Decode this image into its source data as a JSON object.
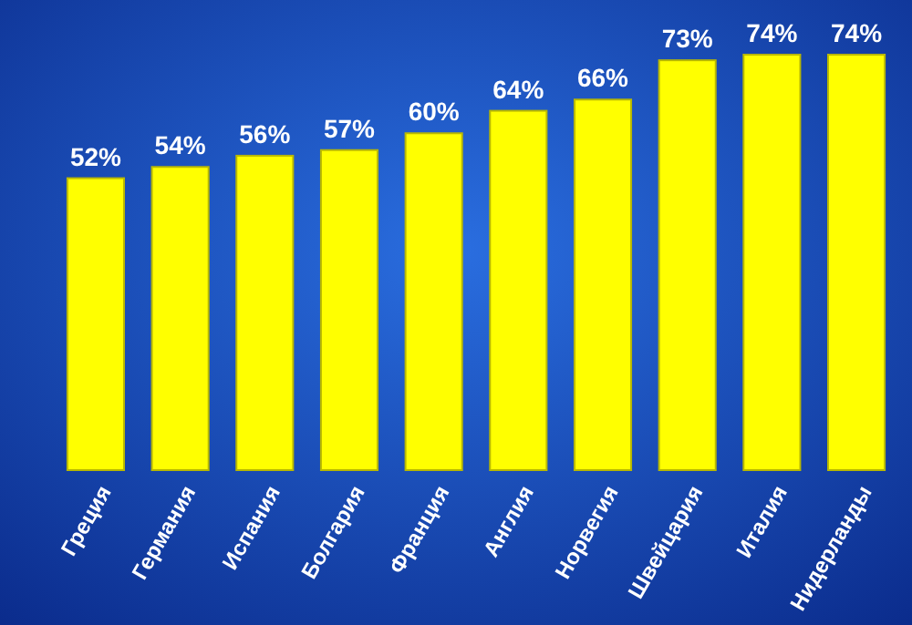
{
  "chart_data": {
    "type": "bar",
    "categories": [
      "Греция",
      "Германия",
      "Испания",
      "Болгария",
      "Франция",
      "Англия",
      "Норвегия",
      "Швейцария",
      "Италия",
      "Нидерланды"
    ],
    "values": [
      52,
      54,
      56,
      57,
      60,
      64,
      66,
      73,
      74,
      74
    ],
    "value_labels": [
      "52%",
      "54%",
      "56%",
      "57%",
      "60%",
      "64%",
      "66%",
      "73%",
      "74%",
      "74%"
    ],
    "color": "#ffff00"
  }
}
